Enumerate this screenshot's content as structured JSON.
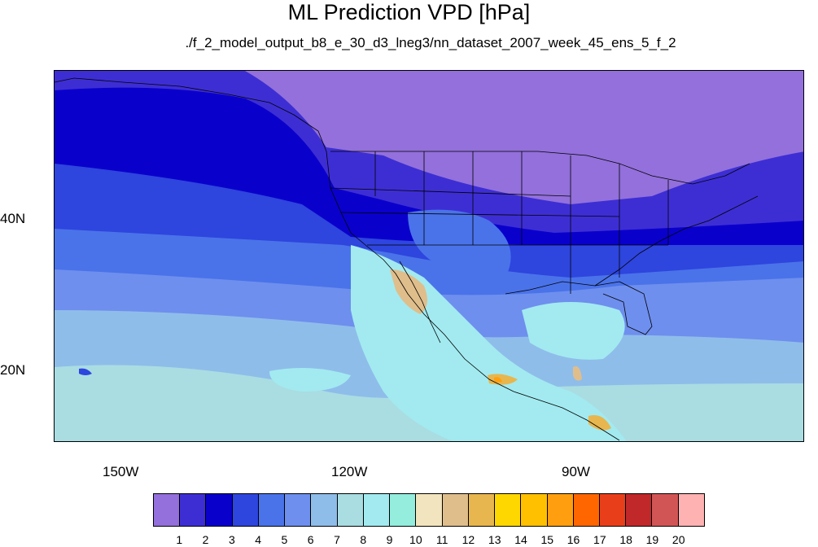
{
  "title": "ML Prediction VPD [hPa]",
  "subtitle": "./f_2_model_output_b8_e_30_d3_lneg3/nn_dataset_2007_week_45_ens_5_f_2",
  "latitude_labels": [
    "40N",
    "20N"
  ],
  "longitude_labels": [
    "150W",
    "120W",
    "90W"
  ],
  "colorbar": {
    "labels": [
      "1",
      "2",
      "3",
      "4",
      "5",
      "6",
      "7",
      "8",
      "9",
      "10",
      "11",
      "12",
      "13",
      "14",
      "15",
      "16",
      "17",
      "18",
      "19",
      "20"
    ],
    "colors": [
      "#9370DB",
      "#3D2ED4",
      "#0A00CC",
      "#2E45DE",
      "#4A73EA",
      "#6E8FEE",
      "#8FBDEA",
      "#A9DDE2",
      "#A2EAF0",
      "#94EDDD",
      "#F2E4BE",
      "#DFBE8C",
      "#E8B64E",
      "#FFD700",
      "#FFC000",
      "#FF9F10",
      "#FF6600",
      "#E83F1A",
      "#C0282A",
      "#D25555",
      "#FFB2B2"
    ]
  },
  "colors": {
    "ocean_far_north": "#9370DB",
    "deep_blue": "#0A00CC",
    "indigo": "#3D2ED4",
    "mid_blue": "#2E45DE",
    "light_blue": "#4A73EA",
    "sky_blue": "#6E8FEE",
    "pale_blue": "#8FBDEA",
    "pale_cyan": "#A9DDE2",
    "cyan": "#A2EAF0",
    "tan": "#DFBE8C",
    "orange": "#FF9F10"
  }
}
